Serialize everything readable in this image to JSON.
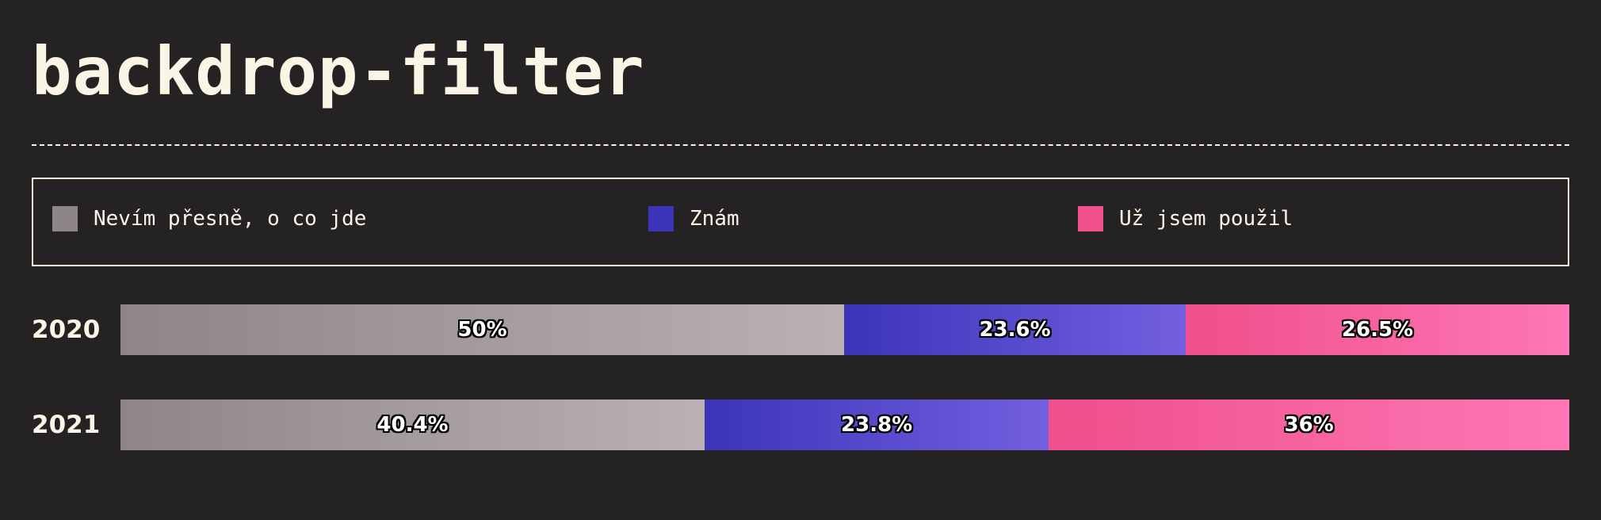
{
  "title": "backdrop-filter",
  "chart_data": {
    "type": "bar",
    "orientation": "horizontal",
    "stacked": true,
    "title": "backdrop-filter",
    "categories": [
      "2020",
      "2021"
    ],
    "series": [
      {
        "name": "Nevím přesně, o co jde",
        "values": [
          50,
          40.4
        ],
        "labels": [
          "50%",
          "40.4%"
        ],
        "color": "#8e8589",
        "gradient": [
          "#8e8589",
          "#b9b1b3"
        ]
      },
      {
        "name": "Znám",
        "values": [
          23.6,
          23.8
        ],
        "labels": [
          "23.6%",
          "23.8%"
        ],
        "color": "#3b34b8",
        "gradient": [
          "#3b34b8",
          "#7360e0"
        ]
      },
      {
        "name": "Už jsem použil",
        "values": [
          26.5,
          36
        ],
        "labels": [
          "26.5%",
          "36%"
        ],
        "color": "#ef4f8a",
        "gradient": [
          "#ef4f8a",
          "#fe77b6"
        ]
      }
    ],
    "xlim": [
      0,
      100
    ],
    "legend": "top",
    "grid": false
  }
}
